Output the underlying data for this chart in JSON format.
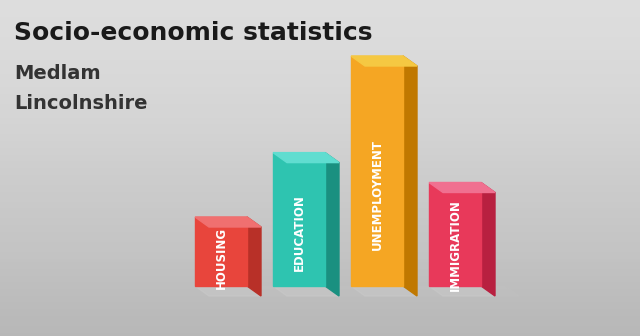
{
  "title_line1": "Socio-economic statistics",
  "title_line2": "Medlam",
  "title_line3": "Lincolnshire",
  "categories": [
    "HOUSING",
    "EDUCATION",
    "UNEMPLOYMENT",
    "IMMIGRATION"
  ],
  "values": [
    0.3,
    0.58,
    1.0,
    0.45
  ],
  "front_colors": [
    "#e8453c",
    "#2ec4b0",
    "#f5a623",
    "#e8395a"
  ],
  "side_colors": [
    "#b83028",
    "#1a9080",
    "#c07800",
    "#b82040"
  ],
  "top_colors": [
    "#f07070",
    "#60ddd0",
    "#f5c842",
    "#f07090"
  ],
  "shadow_color": "#c8c8c8",
  "background_color": "#d8d8d8",
  "title_fontsize": 18,
  "subtitle_fontsize": 14,
  "label_fontsize": 8.5
}
